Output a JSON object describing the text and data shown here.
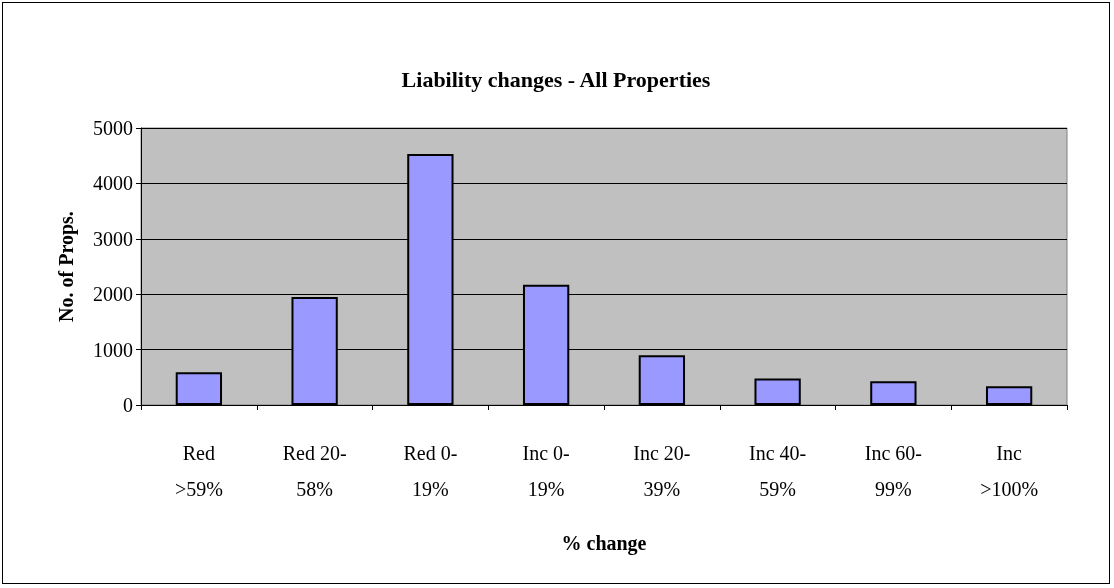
{
  "chart_data": {
    "type": "bar",
    "title": "Liability changes - All Properties",
    "xlabel": "% change",
    "ylabel": "No. of Props.",
    "categories": [
      "Red\n>59%",
      "Red 20-\n58%",
      "Red 0-\n19%",
      "Inc 0-\n19%",
      "Inc 20-\n39%",
      "Inc 40-\n59%",
      "Inc 60-\n99%",
      "Inc\n>100%"
    ],
    "values": [
      590,
      1950,
      4530,
      2170,
      900,
      480,
      430,
      340
    ],
    "color": "#9999ff",
    "ylim": [
      0,
      5000
    ],
    "yticks": [
      0,
      1000,
      2000,
      3000,
      4000,
      5000
    ],
    "grid": "y"
  }
}
